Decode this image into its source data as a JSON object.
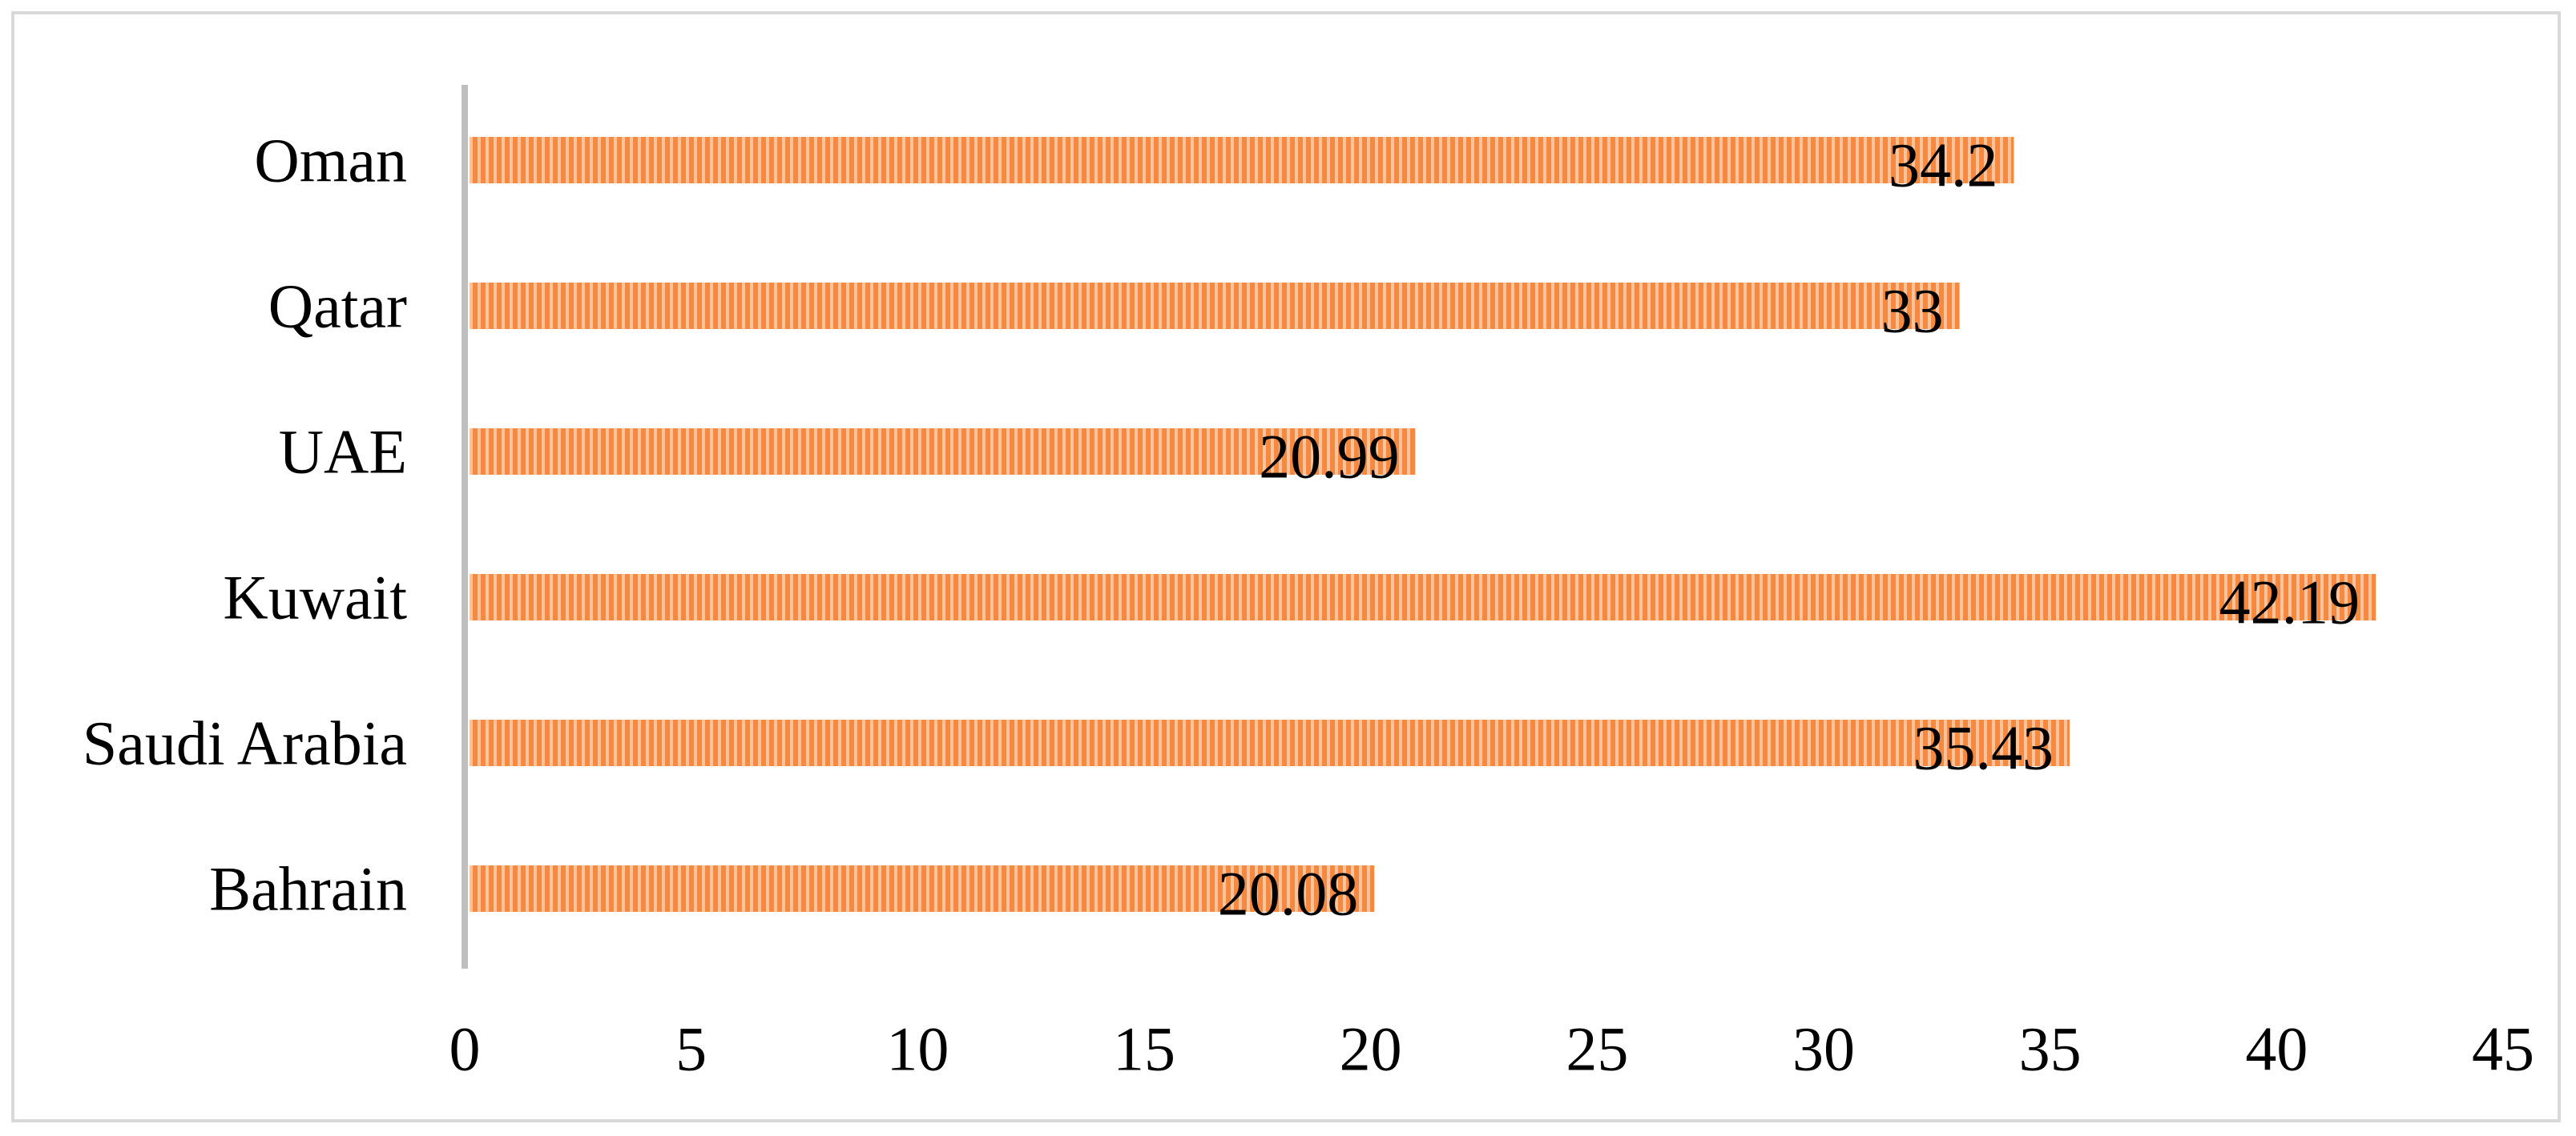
{
  "chart_data": {
    "type": "bar",
    "orientation": "horizontal",
    "title": "",
    "xlabel": "",
    "ylabel": "",
    "categories": [
      "Oman",
      "Qatar",
      "UAE",
      "Kuwait",
      "Saudi Arabia",
      "Bahrain"
    ],
    "values": [
      34.2,
      33,
      20.99,
      42.19,
      35.43,
      20.08
    ],
    "data_labels": [
      "34.2",
      "33",
      "20.99",
      "42.19",
      "35.43",
      "20.08"
    ],
    "xlim": [
      0,
      45
    ],
    "x_ticks": [
      0,
      5,
      10,
      15,
      20,
      25,
      30,
      35,
      40,
      45
    ],
    "x_tick_labels": [
      "0",
      "5",
      "10",
      "15",
      "20",
      "25",
      "30",
      "35",
      "40",
      "45"
    ],
    "grid": false,
    "legend": "none",
    "bar_color": "#f4893f",
    "bar_stripe_color": "#fbc39c",
    "axis_color": "#bfbfbf",
    "frame_color": "#d9d9d9"
  }
}
